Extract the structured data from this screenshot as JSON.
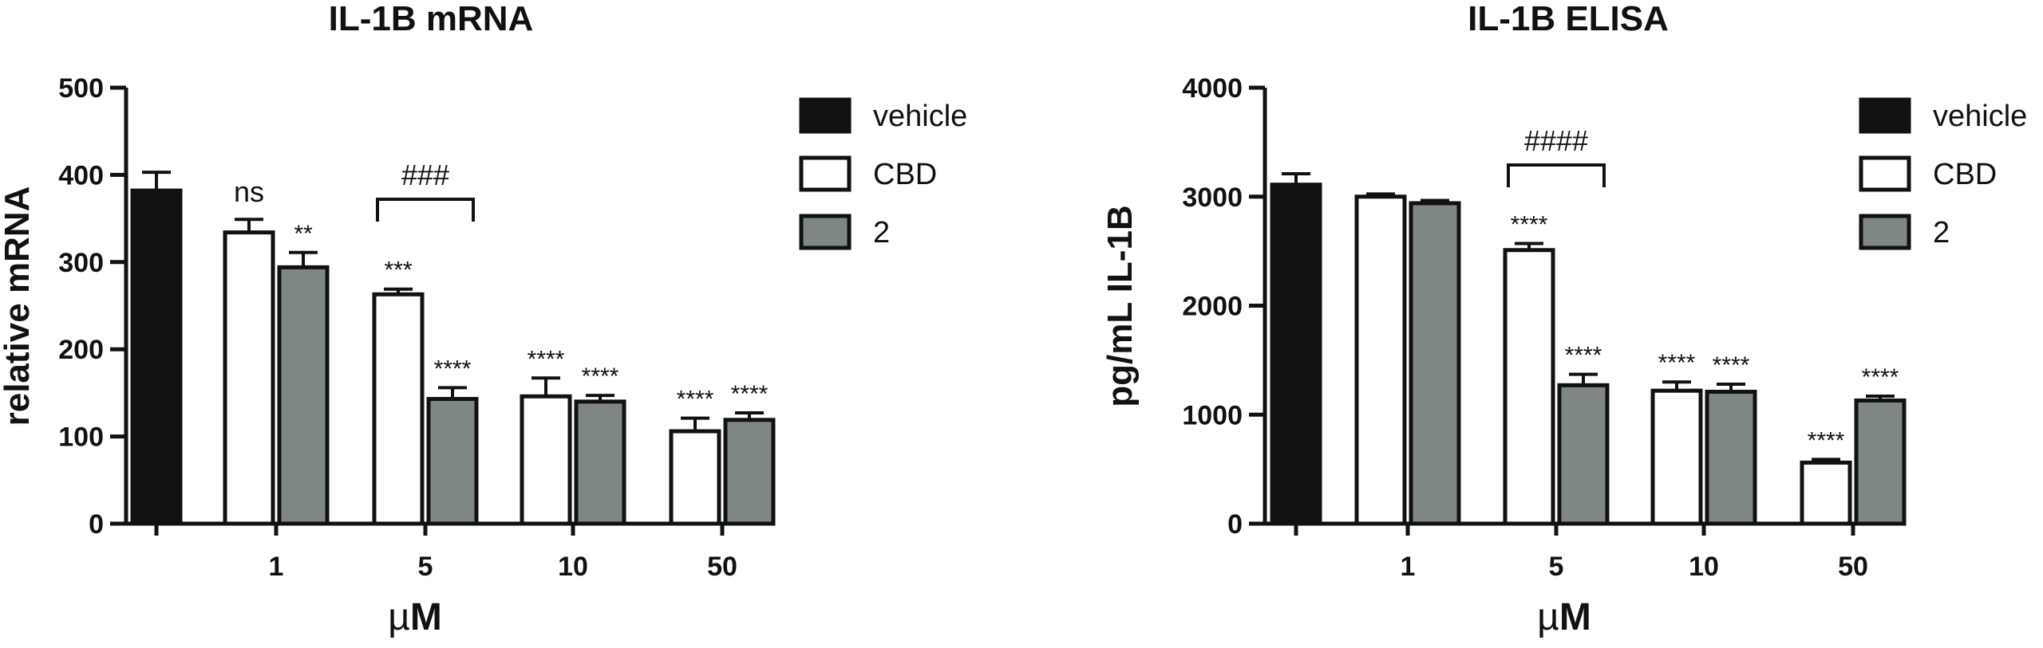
{
  "chart_data": [
    {
      "type": "bar",
      "title": "IL-1B mRNA",
      "xlabel": "µM",
      "ylabel": "relative mRNA",
      "ylim": [
        0,
        500
      ],
      "yticks": [
        0,
        100,
        200,
        300,
        400,
        500
      ],
      "categories": [
        "",
        "1",
        "5",
        "10",
        "50"
      ],
      "series": [
        {
          "name": "vehicle",
          "color": "#111111",
          "values": [
            382,
            null,
            null,
            null,
            null
          ],
          "errors": [
            21,
            null,
            null,
            null,
            null
          ]
        },
        {
          "name": "CBD",
          "color": "#ffffff",
          "values": [
            null,
            334,
            263,
            146,
            106
          ],
          "errors": [
            null,
            15,
            6,
            21,
            15
          ]
        },
        {
          "name": "2",
          "color": "#7f8785",
          "values": [
            null,
            294,
            143,
            140,
            119
          ],
          "errors": [
            null,
            17,
            13,
            7,
            8
          ]
        }
      ],
      "annotations": [
        {
          "series": "CBD",
          "category": "1",
          "text": "ns"
        },
        {
          "series": "2",
          "category": "1",
          "text": "**"
        },
        {
          "series": "CBD",
          "category": "5",
          "text": "***"
        },
        {
          "series": "2",
          "category": "5",
          "text": "****"
        },
        {
          "series": "CBD",
          "category": "10",
          "text": "****"
        },
        {
          "series": "2",
          "category": "10",
          "text": "****"
        },
        {
          "series": "CBD",
          "category": "50",
          "text": "****"
        },
        {
          "series": "2",
          "category": "50",
          "text": "****"
        }
      ],
      "bracket": {
        "category": "5",
        "text": "###"
      },
      "legend": [
        "vehicle",
        "CBD",
        "2"
      ],
      "legend_position": "right"
    },
    {
      "type": "bar",
      "title": "IL-1B ELISA",
      "xlabel": "µM",
      "ylabel": "pg/mL IL-1B",
      "ylim": [
        0,
        4000
      ],
      "yticks": [
        0,
        1000,
        2000,
        3000,
        4000
      ],
      "categories": [
        "",
        "1",
        "5",
        "10",
        "50"
      ],
      "series": [
        {
          "name": "vehicle",
          "color": "#111111",
          "values": [
            3110,
            null,
            null,
            null,
            null
          ],
          "errors": [
            100,
            null,
            null,
            null,
            null
          ]
        },
        {
          "name": "CBD",
          "color": "#ffffff",
          "values": [
            null,
            3000,
            2510,
            1220,
            560
          ],
          "errors": [
            null,
            25,
            60,
            80,
            30
          ]
        },
        {
          "name": "2",
          "color": "#7f8785",
          "values": [
            null,
            2940,
            1270,
            1210,
            1130
          ],
          "errors": [
            null,
            25,
            100,
            70,
            40
          ]
        }
      ],
      "annotations": [
        {
          "series": "CBD",
          "category": "5",
          "text": "****"
        },
        {
          "series": "2",
          "category": "5",
          "text": "****"
        },
        {
          "series": "CBD",
          "category": "10",
          "text": "****"
        },
        {
          "series": "2",
          "category": "10",
          "text": "****"
        },
        {
          "series": "CBD",
          "category": "50",
          "text": "****"
        },
        {
          "series": "2",
          "category": "50",
          "text": "****"
        }
      ],
      "bracket": {
        "category": "5",
        "text": "####"
      },
      "legend": [
        "vehicle",
        "CBD",
        "2"
      ],
      "legend_position": "right"
    }
  ]
}
